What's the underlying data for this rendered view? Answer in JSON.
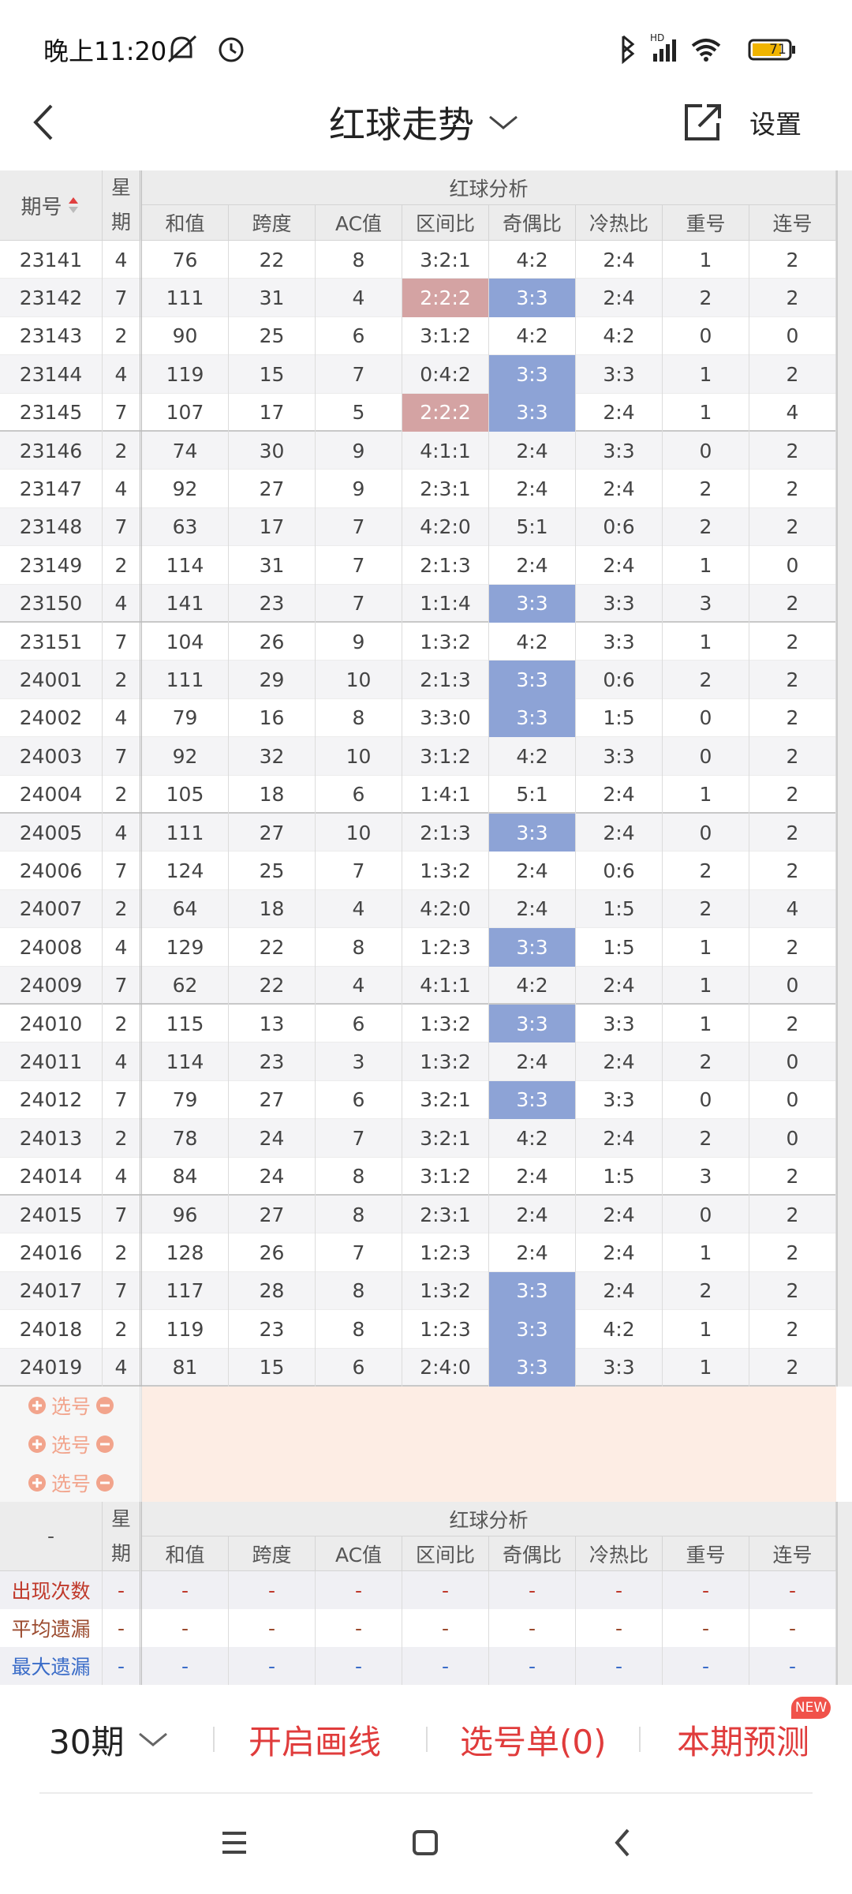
{
  "status_bar": {
    "time": "晚上11:20",
    "battery": "71"
  },
  "header": {
    "title": "红球走势",
    "action": "设置"
  },
  "table": {
    "period_header": "期号",
    "weekday_header": "星期",
    "group_header": "红球分析",
    "columns": [
      "和值",
      "跨度",
      "AC值",
      "区间比",
      "奇偶比",
      "冷热比",
      "重号",
      "连号"
    ],
    "rows": [
      [
        "23141",
        4,
        76,
        22,
        8,
        "3:2:1",
        "4:2",
        "2:4",
        1,
        2
      ],
      [
        "23142",
        7,
        111,
        31,
        4,
        "2:2:2",
        "3:3",
        "2:4",
        2,
        2
      ],
      [
        "23143",
        2,
        90,
        25,
        6,
        "3:1:2",
        "4:2",
        "4:2",
        0,
        0
      ],
      [
        "23144",
        4,
        119,
        15,
        7,
        "0:4:2",
        "3:3",
        "3:3",
        1,
        2
      ],
      [
        "23145",
        7,
        107,
        17,
        5,
        "2:2:2",
        "3:3",
        "2:4",
        1,
        4
      ],
      [
        "23146",
        2,
        74,
        30,
        9,
        "4:1:1",
        "2:4",
        "3:3",
        0,
        2
      ],
      [
        "23147",
        4,
        92,
        27,
        9,
        "2:3:1",
        "2:4",
        "2:4",
        2,
        2
      ],
      [
        "23148",
        7,
        63,
        17,
        7,
        "4:2:0",
        "5:1",
        "0:6",
        2,
        2
      ],
      [
        "23149",
        2,
        114,
        31,
        7,
        "2:1:3",
        "2:4",
        "2:4",
        1,
        0
      ],
      [
        "23150",
        4,
        141,
        23,
        7,
        "1:1:4",
        "3:3",
        "3:3",
        3,
        2
      ],
      [
        "23151",
        7,
        104,
        26,
        9,
        "1:3:2",
        "4:2",
        "3:3",
        1,
        2
      ],
      [
        "24001",
        2,
        111,
        29,
        10,
        "2:1:3",
        "3:3",
        "0:6",
        2,
        2
      ],
      [
        "24002",
        4,
        79,
        16,
        8,
        "3:3:0",
        "3:3",
        "1:5",
        0,
        2
      ],
      [
        "24003",
        7,
        92,
        32,
        10,
        "3:1:2",
        "4:2",
        "3:3",
        0,
        2
      ],
      [
        "24004",
        2,
        105,
        18,
        6,
        "1:4:1",
        "5:1",
        "2:4",
        1,
        2
      ],
      [
        "24005",
        4,
        111,
        27,
        10,
        "2:1:3",
        "3:3",
        "2:4",
        0,
        2
      ],
      [
        "24006",
        7,
        124,
        25,
        7,
        "1:3:2",
        "2:4",
        "0:6",
        2,
        2
      ],
      [
        "24007",
        2,
        64,
        18,
        4,
        "4:2:0",
        "2:4",
        "1:5",
        2,
        4
      ],
      [
        "24008",
        4,
        129,
        22,
        8,
        "1:2:3",
        "3:3",
        "1:5",
        1,
        2
      ],
      [
        "24009",
        7,
        62,
        22,
        4,
        "4:1:1",
        "4:2",
        "2:4",
        1,
        0
      ],
      [
        "24010",
        2,
        115,
        13,
        6,
        "1:3:2",
        "3:3",
        "3:3",
        1,
        2
      ],
      [
        "24011",
        4,
        114,
        23,
        3,
        "1:3:2",
        "2:4",
        "2:4",
        2,
        0
      ],
      [
        "24012",
        7,
        79,
        27,
        6,
        "3:2:1",
        "3:3",
        "3:3",
        0,
        0
      ],
      [
        "24013",
        2,
        78,
        24,
        7,
        "3:2:1",
        "4:2",
        "2:4",
        2,
        0
      ],
      [
        "24014",
        4,
        84,
        24,
        8,
        "3:1:2",
        "2:4",
        "1:5",
        3,
        2
      ],
      [
        "24015",
        7,
        96,
        27,
        8,
        "2:3:1",
        "2:4",
        "2:4",
        0,
        2
      ],
      [
        "24016",
        2,
        128,
        26,
        7,
        "1:2:3",
        "2:4",
        "2:4",
        1,
        2
      ],
      [
        "24017",
        7,
        117,
        28,
        8,
        "1:3:2",
        "3:3",
        "2:4",
        2,
        2
      ],
      [
        "24018",
        2,
        119,
        23,
        8,
        "1:2:3",
        "3:3",
        "4:2",
        1,
        2
      ],
      [
        "24019",
        4,
        81,
        15,
        6,
        "2:4:0",
        "3:3",
        "3:3",
        1,
        2
      ]
    ],
    "highlights": [
      {
        "row": 1,
        "col": 5,
        "color": "#d4a3a3"
      },
      {
        "row": 4,
        "col": 5,
        "color": "#d4a3a3"
      },
      {
        "row": 1,
        "col": 6,
        "color": "#8da3d6"
      },
      {
        "row": 3,
        "col": 6,
        "color": "#8da3d6"
      },
      {
        "row": 4,
        "col": 6,
        "color": "#8da3d6"
      },
      {
        "row": 9,
        "col": 6,
        "color": "#8da3d6"
      },
      {
        "row": 11,
        "col": 6,
        "color": "#8da3d6"
      },
      {
        "row": 12,
        "col": 6,
        "color": "#8da3d6"
      },
      {
        "row": 15,
        "col": 6,
        "color": "#8da3d6"
      },
      {
        "row": 18,
        "col": 6,
        "color": "#8da3d6"
      },
      {
        "row": 20,
        "col": 6,
        "color": "#8da3d6"
      },
      {
        "row": 22,
        "col": 6,
        "color": "#8da3d6"
      },
      {
        "row": 27,
        "col": 6,
        "color": "#8da3d6"
      },
      {
        "row": 28,
        "col": 6,
        "color": "#8da3d6"
      },
      {
        "row": 29,
        "col": 6,
        "color": "#8da3d6"
      }
    ],
    "pick_rows": [
      "选号",
      "选号",
      "选号"
    ]
  },
  "summary": {
    "first_header": "-",
    "weekday_header": "星期",
    "group_header": "红球分析",
    "columns": [
      "和值",
      "跨度",
      "AC值",
      "区间比",
      "奇偶比",
      "冷热比",
      "重号",
      "连号"
    ],
    "rows": [
      {
        "label": "出现次数",
        "color": "#c0392b",
        "values": [
          "-",
          "-",
          "-",
          "-",
          "-",
          "-",
          "-",
          "-",
          "-"
        ]
      },
      {
        "label": "平均遗漏",
        "color": "#9b4a2e",
        "values": [
          "-",
          "-",
          "-",
          "-",
          "-",
          "-",
          "-",
          "-",
          "-"
        ]
      },
      {
        "label": "最大遗漏",
        "color": "#3a6cc8",
        "values": [
          "-",
          "-",
          "-",
          "-",
          "-",
          "-",
          "-",
          "-",
          "-"
        ]
      }
    ]
  },
  "footer": {
    "periods": "30期",
    "draw": "开启画线",
    "picks": "选号单(0)",
    "predict": "本期预测",
    "badge": "NEW"
  }
}
